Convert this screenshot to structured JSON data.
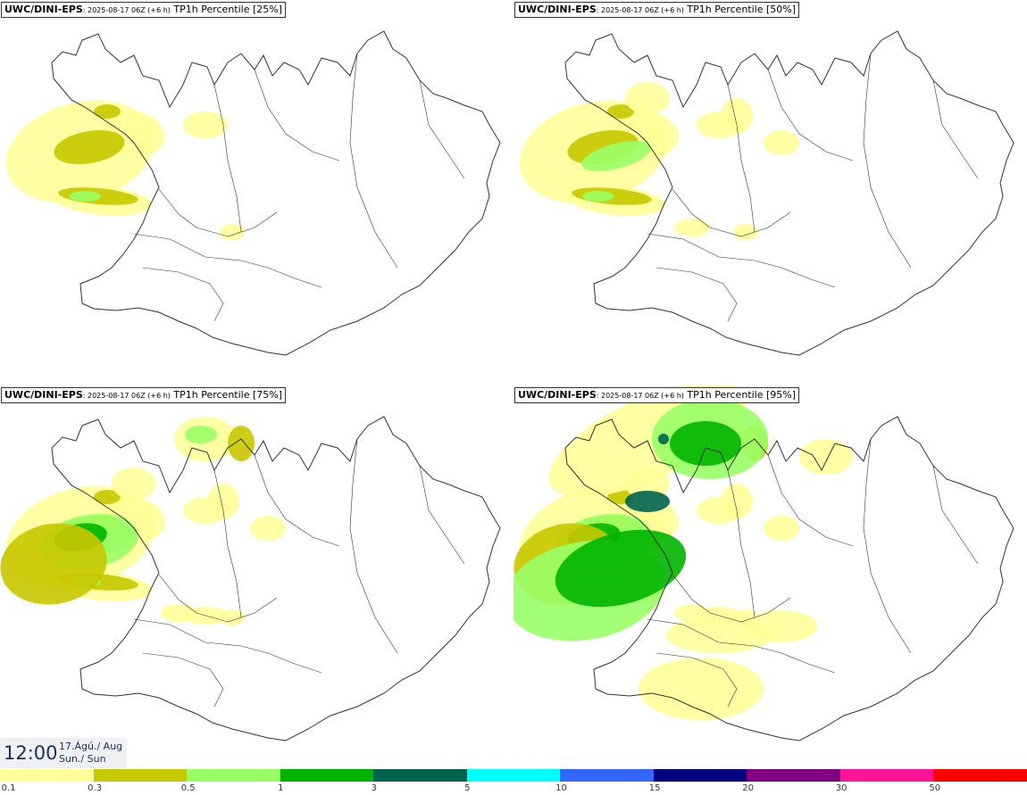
{
  "panels": [
    {
      "model": "UWC/DINI-EPS",
      "run": "2025-08-17 06Z (+6 h)",
      "field": "TP1h Percentile",
      "percentile": "[25%]",
      "intensity": 1
    },
    {
      "model": "UWC/DINI-EPS",
      "run": "2025-08-17 06Z (+6 h)",
      "field": "TP1h Percentile",
      "percentile": "[50%]",
      "intensity": 2
    },
    {
      "model": "UWC/DINI-EPS",
      "run": "2025-08-17 06Z (+6 h)",
      "field": "TP1h Percentile",
      "percentile": "[75%]",
      "intensity": 3
    },
    {
      "model": "UWC/DINI-EPS",
      "run": "2025-08-17 06Z (+6 h)",
      "field": "TP1h Percentile",
      "percentile": "[95%]",
      "intensity": 4
    }
  ],
  "time": {
    "clock": "12:00",
    "date": "17.Ágú./ Aug",
    "weekday": "Sun./ Sun"
  },
  "legend": {
    "colors": [
      "#ffff99",
      "#c8c800",
      "#99ff66",
      "#00b400",
      "#006450",
      "#00ffff",
      "#3366ff",
      "#000080",
      "#800080",
      "#ff1493",
      "#ff0000"
    ],
    "ticks": [
      "0.1",
      "0.3",
      "0.5",
      "1",
      "3",
      "5",
      "10",
      "15",
      "20",
      "30",
      "50"
    ]
  },
  "map_colors": {
    "coast": "#333333",
    "pale": "#ffff99",
    "olive": "#c8c800",
    "lime": "#99ff66",
    "green": "#00b400",
    "dark": "#006450"
  }
}
